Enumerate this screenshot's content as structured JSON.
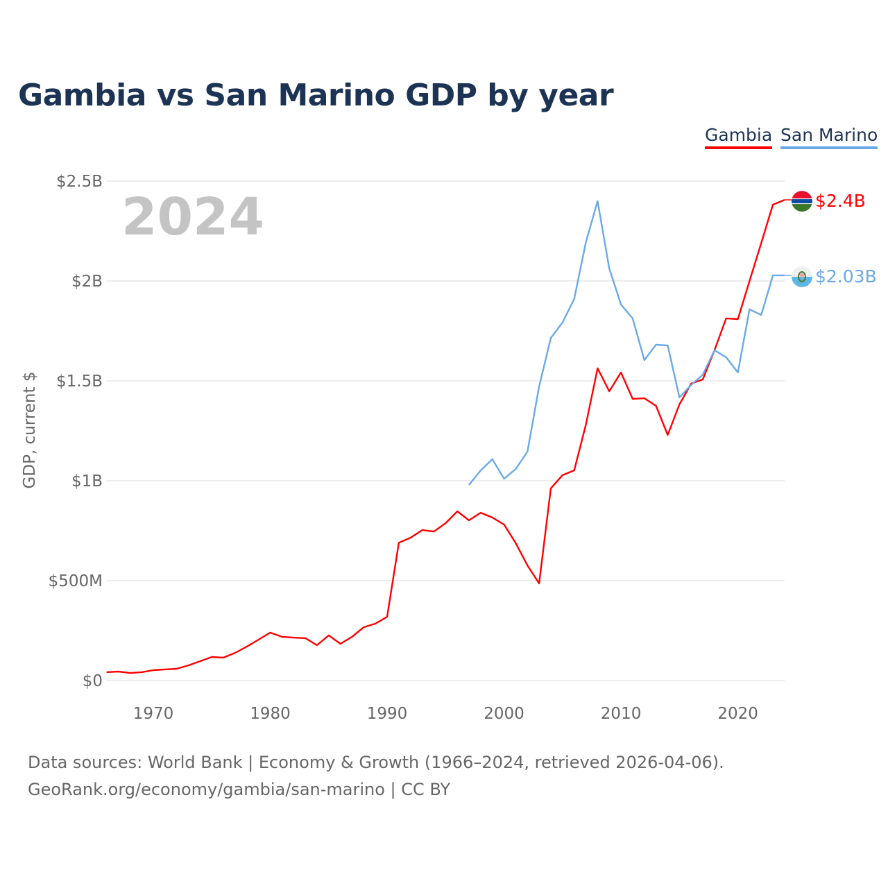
{
  "chart_data": {
    "type": "line",
    "title": "Gambia vs San Marino GDP by year",
    "ylabel": "GDP, current $",
    "xlabel": "",
    "year_label": "2024",
    "xlim": [
      1966,
      2024
    ],
    "ylim": [
      0,
      2.5
    ],
    "x_ticks": [
      1970,
      1980,
      1990,
      2000,
      2010,
      2020
    ],
    "y_ticks": [
      {
        "v": 0,
        "label": "$0"
      },
      {
        "v": 0.5,
        "label": "$500M"
      },
      {
        "v": 1,
        "label": "$1B"
      },
      {
        "v": 1.5,
        "label": "$1.5B"
      },
      {
        "v": 2,
        "label": "$2B"
      },
      {
        "v": 2.5,
        "label": "$2.5B"
      }
    ],
    "legend": [
      "Gambia",
      "San Marino"
    ],
    "legend_position": "top-right",
    "series": [
      {
        "name": "Gambia",
        "color": "#ff0000",
        "end_label": "$2.4B",
        "start": 1966,
        "values": [
          0.042,
          0.045,
          0.038,
          0.042,
          0.052,
          0.056,
          0.059,
          0.076,
          0.097,
          0.118,
          0.115,
          0.139,
          0.17,
          0.205,
          0.24,
          0.219,
          0.215,
          0.212,
          0.177,
          0.226,
          0.184,
          0.219,
          0.267,
          0.285,
          0.319,
          0.69,
          0.715,
          0.753,
          0.746,
          0.788,
          0.847,
          0.802,
          0.84,
          0.816,
          0.781,
          0.688,
          0.576,
          0.486,
          0.962,
          1.028,
          1.052,
          1.281,
          1.563,
          1.448,
          1.542,
          1.41,
          1.413,
          1.375,
          1.229,
          1.382,
          1.486,
          1.507,
          1.653,
          1.813,
          1.809,
          2.0,
          2.19,
          2.382,
          2.406
        ]
      },
      {
        "name": "San Marino",
        "color": "#6aa9e8",
        "end_label": "$2.03B",
        "start": 1997,
        "values": [
          0.979,
          1.052,
          1.108,
          1.01,
          1.059,
          1.146,
          1.472,
          1.715,
          1.792,
          1.91,
          2.194,
          2.4,
          2.063,
          1.882,
          1.813,
          1.604,
          1.681,
          1.677,
          1.417,
          1.479,
          1.531,
          1.653,
          1.618,
          1.542,
          1.858,
          1.83,
          2.028,
          2.028
        ]
      }
    ]
  },
  "footer": {
    "line1": "Data sources: World Bank | Economy & Growth (1966–2024, retrieved 2026-04-06).",
    "line2": "GeoRank.org/economy/gambia/san-marino | CC BY"
  }
}
